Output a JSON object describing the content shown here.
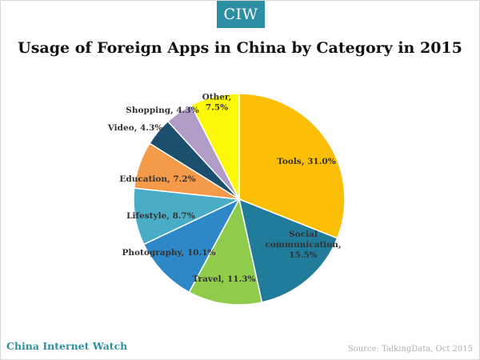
{
  "header": {
    "badge": "CIW"
  },
  "footer": {
    "brand": "China Internet Watch",
    "source": "Source: TalkingData,  Oct 2015"
  },
  "chart_data": {
    "type": "pie",
    "title": "Usage of Foreign Apps in China by Category in 2015",
    "unit": "%",
    "categories": [
      "Tools",
      "Social communication",
      "Travel",
      "Photography",
      "Lifestyle",
      "Education",
      "Video",
      "Shopping",
      "Other"
    ],
    "values": [
      31.0,
      15.5,
      11.3,
      10.1,
      8.7,
      7.2,
      4.3,
      4.3,
      7.5
    ],
    "label_lines": [
      [
        "Tools, 31.0%"
      ],
      [
        "Social",
        "communication,",
        "15.5%"
      ],
      [
        "Travel, 11.3%"
      ],
      [
        "Photography,  10.1%"
      ],
      [
        "Lifestyle, 8.7%"
      ],
      [
        "Education,  7.2%"
      ],
      [
        "Video, 4.3%"
      ],
      [
        "Shopping,  4.3%"
      ],
      [
        "Other,",
        "7.5%"
      ]
    ],
    "colors": [
      "#fcbf05",
      "#217c9b",
      "#8fcc4c",
      "#2e88c7",
      "#49adc8",
      "#f59a49",
      "#1c4f6e",
      "#b09cc6",
      "#fdf807"
    ],
    "start_angle_deg": 0,
    "direction": "clockwise"
  }
}
